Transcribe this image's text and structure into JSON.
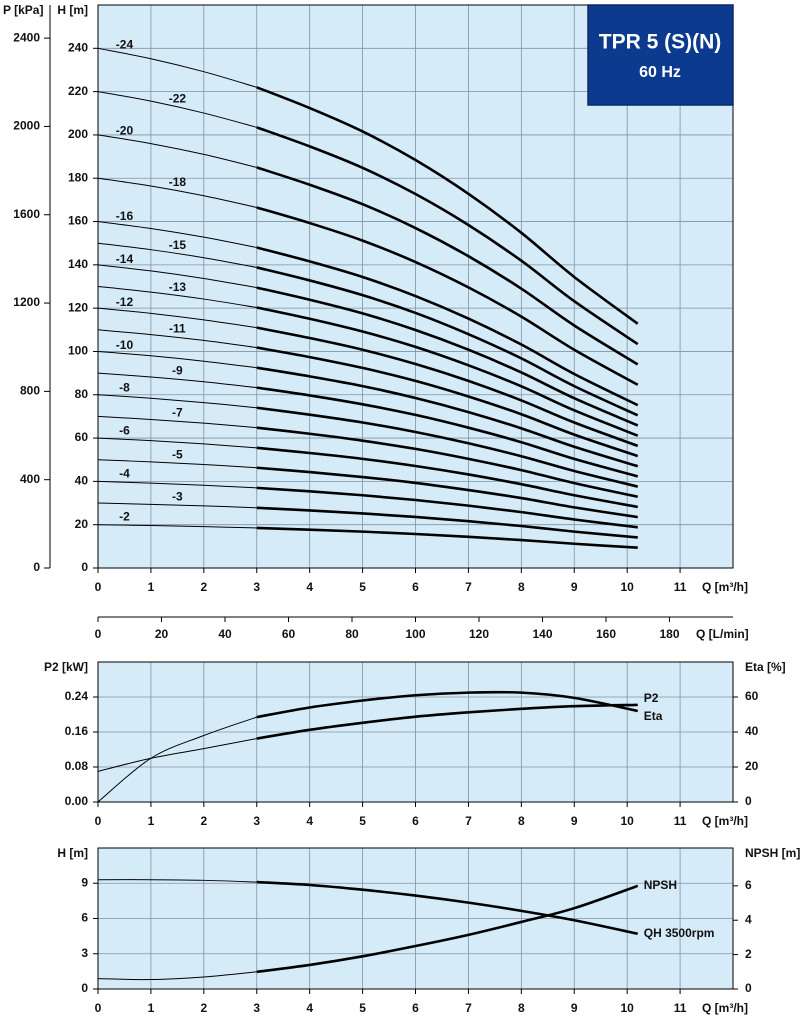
{
  "chart_data": [
    {
      "type": "line",
      "title": "TPR 5 (S)(N)",
      "subtitle": "60 Hz",
      "x_label": "Q [m³/h]",
      "y_label": "H [m]",
      "y2_label": "P [kPa]",
      "x2_label": "Q [L/min]",
      "xlim": [
        0,
        12
      ],
      "xticks": [
        0,
        1,
        2,
        3,
        4,
        5,
        6,
        7,
        8,
        9,
        10,
        11
      ],
      "ylim": [
        0,
        260
      ],
      "yticks": [
        0,
        20,
        40,
        60,
        80,
        100,
        120,
        140,
        160,
        180,
        200,
        220,
        240
      ],
      "y2lim": [
        0,
        2550
      ],
      "y2ticks": [
        0,
        400,
        800,
        1200,
        1600,
        2000,
        2400
      ],
      "y2_position": "left",
      "x2lim": [
        0,
        200
      ],
      "x2ticks": [
        0,
        20,
        40,
        60,
        80,
        100,
        120,
        140,
        160,
        180
      ],
      "grid": true,
      "plot_color": "#d6ebf8",
      "bold_from_x": 3,
      "x": [
        0,
        1,
        2,
        3,
        4,
        5,
        6,
        7,
        8,
        9,
        10.2
      ],
      "series": [
        {
          "name": "-2",
          "color": "#000000",
          "values": [
            20,
            19.6,
            19.1,
            18.5,
            17.7,
            16.8,
            15.7,
            14.4,
            12.9,
            11.2,
            9.4
          ]
        },
        {
          "name": "-3",
          "color": "#000000",
          "values": [
            30,
            29.4,
            28.7,
            27.8,
            26.6,
            25.2,
            23.6,
            21.6,
            19.4,
            16.8,
            14.1
          ]
        },
        {
          "name": "-4",
          "color": "#000000",
          "values": [
            40,
            39.2,
            38.2,
            37,
            35.4,
            33.6,
            31.4,
            28.8,
            25.8,
            22.4,
            18.8
          ]
        },
        {
          "name": "-5",
          "color": "#000000",
          "values": [
            50,
            49,
            47.8,
            46.3,
            44.3,
            42,
            39.3,
            36,
            32.3,
            28,
            23.5
          ]
        },
        {
          "name": "-6",
          "color": "#000000",
          "values": [
            60,
            58.8,
            57.3,
            55.5,
            53.1,
            50.4,
            47.1,
            43.2,
            38.7,
            33.6,
            28.2
          ]
        },
        {
          "name": "-7",
          "color": "#000000",
          "values": [
            70,
            68.6,
            66.9,
            64.8,
            62,
            58.8,
            55,
            50.4,
            45.2,
            39.2,
            32.9
          ]
        },
        {
          "name": "-8",
          "color": "#000000",
          "values": [
            80,
            78.4,
            76.4,
            74,
            70.8,
            67.2,
            62.8,
            57.6,
            51.6,
            44.8,
            37.6
          ]
        },
        {
          "name": "-9",
          "color": "#000000",
          "values": [
            90,
            88.2,
            86,
            83.3,
            79.7,
            75.6,
            70.7,
            64.8,
            58.1,
            50.4,
            42.3
          ]
        },
        {
          "name": "-10",
          "color": "#000000",
          "values": [
            100,
            98,
            95.5,
            92.5,
            88.5,
            84,
            78.5,
            72,
            64.5,
            56,
            47
          ]
        },
        {
          "name": "-11",
          "color": "#000000",
          "values": [
            110,
            107.8,
            105.1,
            101.8,
            97.4,
            92.4,
            86.4,
            79.2,
            71,
            61.6,
            51.7
          ]
        },
        {
          "name": "-12",
          "color": "#000000",
          "values": [
            120,
            117.6,
            114.6,
            111,
            106.2,
            100.8,
            94.2,
            86.4,
            77.4,
            67.2,
            56.4
          ]
        },
        {
          "name": "-13",
          "color": "#000000",
          "values": [
            130,
            127.4,
            124.2,
            120.3,
            115.1,
            109.2,
            102.1,
            93.6,
            83.9,
            72.8,
            61.1
          ]
        },
        {
          "name": "-14",
          "color": "#000000",
          "values": [
            140,
            137.2,
            133.7,
            129.5,
            123.9,
            117.6,
            109.9,
            100.8,
            90.3,
            78.4,
            65.8
          ]
        },
        {
          "name": "-15",
          "color": "#000000",
          "values": [
            150,
            147,
            143.3,
            138.8,
            132.8,
            126,
            117.8,
            108,
            96.8,
            84,
            70.5
          ]
        },
        {
          "name": "-16",
          "color": "#000000",
          "values": [
            160,
            156.8,
            152.8,
            148,
            141.6,
            134.4,
            125.6,
            115.2,
            103.2,
            89.6,
            75.2
          ]
        },
        {
          "name": "-18",
          "color": "#000000",
          "values": [
            180,
            176.4,
            171.9,
            166.5,
            159.3,
            151.2,
            141.3,
            129.6,
            116.1,
            100.8,
            84.6
          ]
        },
        {
          "name": "-20",
          "color": "#000000",
          "values": [
            200,
            196,
            191,
            185,
            177,
            168,
            157,
            144,
            129,
            112,
            94
          ]
        },
        {
          "name": "-22",
          "color": "#000000",
          "values": [
            220,
            215.6,
            210.1,
            203.5,
            194.7,
            184.8,
            172.7,
            158.4,
            141.9,
            123.2,
            103.4
          ]
        },
        {
          "name": "-24",
          "color": "#000000",
          "values": [
            240,
            235.2,
            229.2,
            222,
            212.4,
            201.6,
            188.4,
            172.8,
            154.8,
            134.4,
            112.8
          ]
        }
      ]
    },
    {
      "type": "line",
      "x_label": "Q [m³/h]",
      "y_label": "P2 [kW]",
      "y2_label": "Eta [%]",
      "xlim": [
        0,
        12
      ],
      "xticks": [
        0,
        1,
        2,
        3,
        4,
        5,
        6,
        7,
        8,
        9,
        10,
        11
      ],
      "ylim": [
        0,
        0.32
      ],
      "yticks": [
        {
          "value": 0,
          "label": "0.00"
        },
        0.08,
        0.16,
        0.24
      ],
      "y2lim": [
        0,
        80
      ],
      "y2ticks": [
        0,
        20,
        40,
        60
      ],
      "y2_position": "right",
      "grid": true,
      "plot_color": "#d6ebf8",
      "bold_from_x": 3,
      "x": [
        0,
        1,
        2,
        3,
        4,
        5,
        6,
        7,
        8,
        9,
        10.2
      ],
      "series": [
        {
          "name": "P2",
          "color": "#000000",
          "values": [
            0.07,
            0.1,
            0.122,
            0.145,
            0.165,
            0.181,
            0.195,
            0.205,
            0.213,
            0.219,
            0.222
          ]
        },
        {
          "name": "Eta",
          "color": "#000000",
          "axis": "y2",
          "values": [
            0,
            25,
            38,
            48.5,
            54,
            58,
            61,
            62.5,
            62.5,
            59.5,
            52
          ]
        }
      ]
    },
    {
      "type": "line",
      "x_label": "Q [m³/h]",
      "y_label": "H [m]",
      "y2_label": "NPSH [m]",
      "xlim": [
        0,
        12
      ],
      "xticks": [
        0,
        1,
        2,
        3,
        4,
        5,
        6,
        7,
        8,
        9,
        10,
        11
      ],
      "ylim": [
        0,
        12
      ],
      "yticks": [
        0,
        3,
        6,
        9
      ],
      "y2lim": [
        0,
        8.2
      ],
      "y2ticks": [
        0,
        2,
        4,
        6
      ],
      "y2_position": "right",
      "grid": true,
      "plot_color": "#d6ebf8",
      "bold_from_x": 3,
      "x": [
        0,
        1,
        2,
        3,
        4,
        5,
        6,
        7,
        8,
        9,
        10.2
      ],
      "series": [
        {
          "name": "QH 3500rpm",
          "color": "#000000",
          "values": [
            9.3,
            9.3,
            9.25,
            9.1,
            8.85,
            8.45,
            7.95,
            7.35,
            6.65,
            5.85,
            4.7
          ]
        },
        {
          "name": "NPSH",
          "color": "#000000",
          "axis": "y2",
          "values": [
            0.6,
            0.55,
            0.7,
            1.0,
            1.4,
            1.9,
            2.5,
            3.15,
            3.9,
            4.7,
            6.0
          ]
        }
      ]
    }
  ]
}
